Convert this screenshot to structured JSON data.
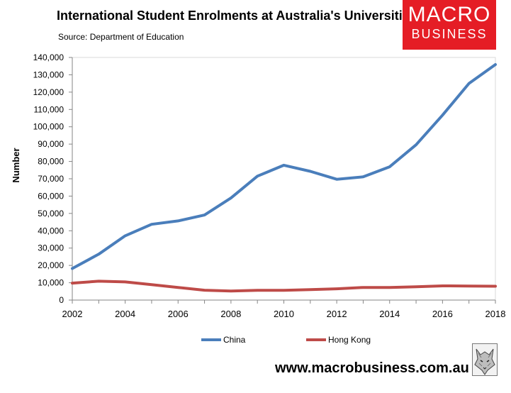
{
  "title": "International Student Enrolments at Australia's Universities",
  "subtitle": "Source: Department of Education",
  "logo": {
    "line1": "MACRO",
    "line2": "BUSINESS"
  },
  "website": "www.macrobusiness.com.au",
  "colors": {
    "brand": "#e51d25",
    "china": "#4a7ebb",
    "hongkong": "#be4b48"
  },
  "icons": {
    "watermark": "wolf-sketch-icon"
  },
  "chart_data": {
    "type": "line",
    "title": "International Student Enrolments at Australia's Universities",
    "subtitle": "Source: Department of Education",
    "xlabel": "",
    "ylabel": "Number",
    "x": [
      2002,
      2003,
      2004,
      2005,
      2006,
      2007,
      2008,
      2009,
      2010,
      2011,
      2012,
      2013,
      2014,
      2015,
      2016,
      2017,
      2018
    ],
    "xticks": [
      "2002",
      "2004",
      "2006",
      "2008",
      "2010",
      "2012",
      "2014",
      "2016",
      "2018"
    ],
    "xlim": [
      2002,
      2018
    ],
    "ylim": [
      0,
      140000
    ],
    "yticks": [
      "0",
      "10,000",
      "20,000",
      "30,000",
      "40,000",
      "50,000",
      "60,000",
      "70,000",
      "80,000",
      "90,000",
      "100,000",
      "110,000",
      "120,000",
      "130,000",
      "140,000"
    ],
    "series": [
      {
        "name": "China",
        "color": "#4a7ebb",
        "values": [
          18200,
          26500,
          37100,
          43700,
          45700,
          49100,
          58900,
          71500,
          77800,
          74300,
          69700,
          71100,
          76900,
          89600,
          106700,
          125000,
          135900
        ]
      },
      {
        "name": "Hong Kong",
        "color": "#be4b48",
        "values": [
          9800,
          10900,
          10500,
          8900,
          7300,
          5700,
          5200,
          5600,
          5600,
          6000,
          6500,
          7300,
          7300,
          7700,
          8200,
          8100,
          8000
        ]
      }
    ],
    "grid": false,
    "legend": "bottom"
  }
}
